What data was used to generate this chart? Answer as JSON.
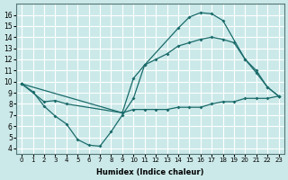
{
  "xlabel": "Humidex (Indice chaleur)",
  "xlim": [
    -0.5,
    23.5
  ],
  "ylim": [
    3.5,
    17.0
  ],
  "xticks": [
    0,
    1,
    2,
    3,
    4,
    5,
    6,
    7,
    8,
    9,
    10,
    11,
    12,
    13,
    14,
    15,
    16,
    17,
    18,
    19,
    20,
    21,
    22,
    23
  ],
  "yticks": [
    4,
    5,
    6,
    7,
    8,
    9,
    10,
    11,
    12,
    13,
    14,
    15,
    16
  ],
  "bg_color": "#cce9e9",
  "line_color": "#1a6b6b",
  "grid_color": "#ffffff",
  "series": [
    {
      "x": [
        0,
        1,
        2,
        3,
        4,
        5,
        6,
        7,
        8,
        9,
        10,
        11,
        14,
        15,
        16,
        17,
        18,
        20,
        21,
        22,
        23
      ],
      "y": [
        9.8,
        9.1,
        7.8,
        6.9,
        6.2,
        4.8,
        4.3,
        4.2,
        5.5,
        7.0,
        8.5,
        11.5,
        14.8,
        15.8,
        16.2,
        16.1,
        15.5,
        12.0,
        10.8,
        9.5,
        8.7
      ]
    },
    {
      "x": [
        0,
        2,
        3,
        4,
        9,
        10,
        11,
        12,
        13,
        14,
        15,
        16,
        17,
        18,
        19,
        20,
        21,
        22,
        23
      ],
      "y": [
        9.8,
        8.2,
        8.3,
        8.0,
        7.2,
        7.5,
        7.5,
        7.5,
        7.5,
        7.7,
        7.7,
        7.7,
        8.0,
        8.2,
        8.2,
        8.5,
        8.5,
        8.5,
        8.7
      ]
    },
    {
      "x": [
        0,
        9,
        10,
        11,
        12,
        13,
        14,
        15,
        16,
        17,
        18,
        19,
        20,
        21,
        22,
        23
      ],
      "y": [
        9.8,
        7.2,
        10.3,
        11.5,
        12.0,
        12.5,
        13.2,
        13.5,
        13.8,
        14.0,
        13.8,
        13.5,
        12.0,
        11.0,
        9.5,
        8.7
      ]
    }
  ]
}
